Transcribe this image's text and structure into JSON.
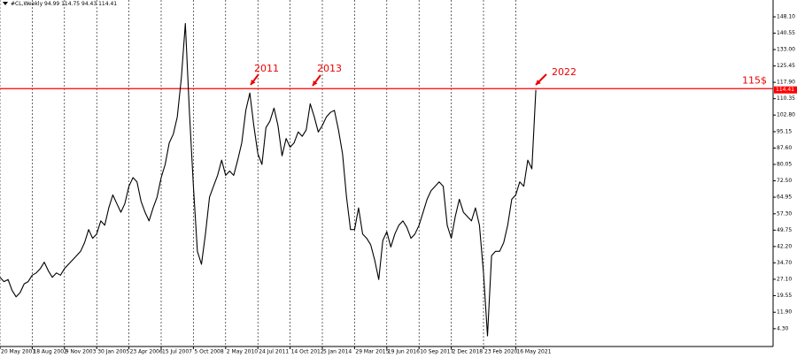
{
  "chart_data": {
    "type": "line",
    "header": "#CL,Weekly  94.99 114.75 94.43 114.41",
    "color": "#000000",
    "categories": [
      "20 May 2001",
      null,
      null,
      null,
      null,
      null,
      null,
      null,
      "18 Aug 2002",
      null,
      null,
      null,
      null,
      null,
      null,
      null,
      "9 Nov 2003",
      null,
      null,
      null,
      null,
      null,
      null,
      null,
      "30 Jan 2005",
      null,
      null,
      null,
      null,
      null,
      null,
      null,
      "23 Apr 2006",
      null,
      null,
      null,
      null,
      null,
      null,
      null,
      "15 Jul 2007",
      null,
      null,
      null,
      null,
      null,
      null,
      null,
      "5 Oct 2008",
      null,
      null,
      null,
      null,
      null,
      null,
      null,
      "2 May 2010",
      null,
      null,
      null,
      null,
      null,
      null,
      null,
      "24 Jul 2011",
      null,
      null,
      null,
      null,
      null,
      null,
      null,
      "14 Oct 2012",
      null,
      null,
      null,
      null,
      null,
      null,
      null,
      "5 Jan 2014",
      null,
      null,
      null,
      null,
      null,
      null,
      null,
      "29 Mar 2015",
      null,
      null,
      null,
      null,
      null,
      null,
      null,
      "19 Jun 2016",
      null,
      null,
      null,
      null,
      null,
      null,
      null,
      "10 Sep 2017",
      null,
      null,
      null,
      null,
      null,
      null,
      null,
      "2 Dec 2018",
      null,
      null,
      null,
      null,
      null,
      null,
      null,
      "23 Feb 2020",
      null,
      null,
      null,
      null,
      null,
      null,
      null,
      "16 May 2021",
      null,
      null,
      null,
      null,
      null
    ],
    "values": [
      28,
      26,
      27,
      22,
      19,
      21,
      25,
      26,
      29,
      30,
      32,
      35,
      31,
      28,
      30,
      29,
      32,
      34,
      36,
      38,
      40,
      44,
      50,
      46,
      48,
      54,
      52,
      60,
      66,
      62,
      58,
      62,
      70,
      74,
      72,
      63,
      58,
      54,
      60,
      65,
      74,
      80,
      90,
      94,
      102,
      120,
      145,
      105,
      70,
      40,
      34,
      48,
      65,
      70,
      75,
      82,
      75,
      77,
      75,
      82,
      90,
      105,
      113,
      98,
      85,
      80,
      97,
      100,
      106,
      98,
      84,
      92,
      88,
      90,
      95,
      93,
      96,
      108,
      102,
      95,
      98,
      102,
      104,
      105,
      96,
      85,
      65,
      50,
      50,
      60,
      48,
      46,
      43,
      36,
      27,
      45,
      49,
      42,
      48,
      52,
      54,
      51,
      46,
      48,
      52,
      58,
      64,
      68,
      70,
      72,
      70,
      52,
      46,
      56,
      64,
      58,
      56,
      54,
      60,
      52,
      30,
      1,
      38,
      40,
      40,
      44,
      52,
      64,
      66,
      72,
      70,
      82,
      78,
      114.41
    ],
    "ylim": [
      -3.9,
      152.6
    ],
    "yticks": [
      {
        "value": 148.1,
        "label": "148.10"
      },
      140.55,
      {
        "value": 133,
        "label": "133.00"
      },
      125.45,
      {
        "value": 117.9,
        "label": "117.90"
      },
      110.35,
      {
        "value": 102.8,
        "label": "102.80"
      },
      95.15,
      {
        "value": 87.6,
        "label": "87.60"
      },
      {
        "value": 80.05,
        "label": "80.05"
      },
      {
        "value": 72.5,
        "label": "72.50"
      },
      64.95,
      {
        "value": 57.3,
        "label": "57.30"
      },
      49.75,
      {
        "value": 42.2,
        "label": "42.20"
      },
      {
        "value": 34.7,
        "label": "34.70"
      },
      {
        "value": 27.1,
        "label": "27.10"
      },
      19.55,
      {
        "value": 11.9,
        "label": "11.90"
      },
      {
        "value": 4.3,
        "label": "4.30"
      }
    ],
    "hline": {
      "value": 115,
      "label": "115$",
      "color": "#ff0000"
    },
    "last_price": 114.41,
    "annotations": [
      "2011",
      "2013",
      "2022"
    ],
    "grid": true
  }
}
